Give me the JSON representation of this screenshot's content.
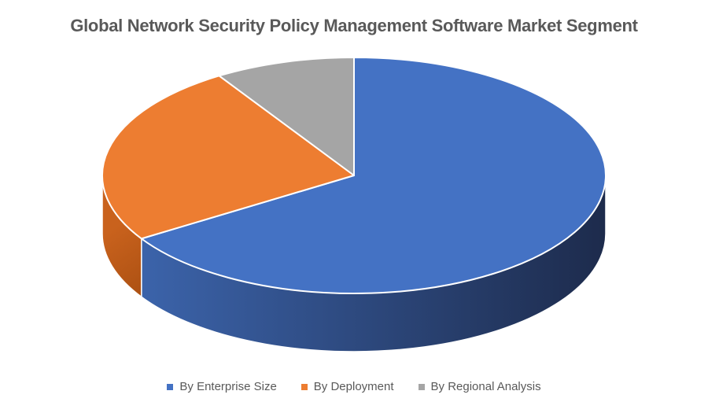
{
  "title": "Global Network Security Policy Management Software Market Segment",
  "title_color": "#595959",
  "legend_text_color": "#595959",
  "chart_data": {
    "type": "pie",
    "style": "3d",
    "start_angle_deg": 0,
    "direction": "clockwise",
    "legend_position": "bottom",
    "title": "Global Network Security Policy Management Software Market Segment",
    "segments": [
      {
        "label": "By Enterprise Size",
        "value": 66,
        "color": "#4472C4",
        "side_color_from": "#3E68B2",
        "side_color_to": "#1D2B4C"
      },
      {
        "label": "By Deployment",
        "value": 25,
        "color": "#ED7D31",
        "side_color_from": "#C9621D",
        "side_color_to": "#A84E11"
      },
      {
        "label": "By Regional Analysis",
        "value": 9,
        "color": "#A5A5A5",
        "side_color_from": "#8C8C8C",
        "side_color_to": "#7A7A7A"
      }
    ]
  }
}
